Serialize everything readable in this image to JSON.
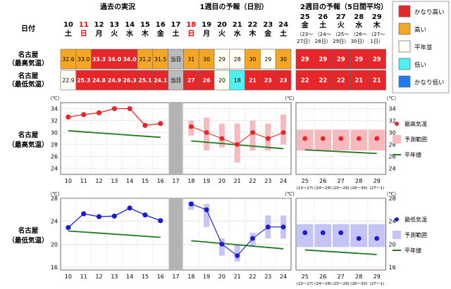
{
  "header": {
    "date_label": "日付",
    "past_label": "過去の実況",
    "week1_label": "1週目の予報（日別）",
    "week2_label": "2週目の予報（5日間平均）",
    "today_label": "当日"
  },
  "days": [
    {
      "d": "10",
      "w": "土",
      "c": "#000000"
    },
    {
      "d": "11",
      "w": "日",
      "c": "#ff0000"
    },
    {
      "d": "12",
      "w": "月",
      "c": "#000000"
    },
    {
      "d": "13",
      "w": "火",
      "c": "#000000"
    },
    {
      "d": "14",
      "w": "水",
      "c": "#000000"
    },
    {
      "d": "15",
      "w": "木",
      "c": "#000000"
    },
    {
      "d": "16",
      "w": "金",
      "c": "#000000"
    },
    {
      "d": "17",
      "w": "土",
      "c": "#000000"
    },
    {
      "d": "18",
      "w": "日",
      "c": "#ff0000"
    },
    {
      "d": "19",
      "w": "月",
      "c": "#000000"
    },
    {
      "d": "20",
      "w": "火",
      "c": "#000000"
    },
    {
      "d": "21",
      "w": "水",
      "c": "#000000"
    },
    {
      "d": "22",
      "w": "木",
      "c": "#000000"
    },
    {
      "d": "23",
      "w": "金",
      "c": "#000000"
    },
    {
      "d": "24",
      "w": "土",
      "c": "#000000"
    }
  ],
  "week2_days": [
    {
      "d": "25",
      "w": "金",
      "r1": "（23〜",
      "r2": "27日）",
      "c": "#000000"
    },
    {
      "d": "26",
      "w": "土",
      "r1": "（24〜",
      "r2": "28日）",
      "c": "#000000"
    },
    {
      "d": "27",
      "w": "火",
      "r1": "（25〜",
      "r2": "29日）",
      "c": "#000000"
    },
    {
      "d": "28",
      "w": "水",
      "r1": "（26〜",
      "r2": "30日）",
      "c": "#000000"
    },
    {
      "d": "29",
      "w": "木",
      "r1": "（27〜",
      "r2": "1日）",
      "c": "#000000"
    }
  ],
  "rows": [
    {
      "label1": "名古屋",
      "label2": "（最高気温）",
      "cells": [
        {
          "v": "32.6",
          "bg": "#f5a623",
          "fg": "#000000"
        },
        {
          "v": "33.0",
          "bg": "#f5a623",
          "fg": "#000000"
        },
        {
          "v": "33.3",
          "bg": "#e8262a",
          "fg": "#ffffff"
        },
        {
          "v": "34.0",
          "bg": "#e8262a",
          "fg": "#ffffff"
        },
        {
          "v": "34.0",
          "bg": "#e8262a",
          "fg": "#ffffff"
        },
        {
          "v": "31.2",
          "bg": "#f5a623",
          "fg": "#000000"
        },
        {
          "v": "31.5",
          "bg": "#f5a623",
          "fg": "#000000"
        },
        {
          "v": "当日",
          "bg": "#bbbbbb",
          "fg": "#000000"
        },
        {
          "v": "31",
          "bg": "#f5a623",
          "fg": "#000000"
        },
        {
          "v": "30",
          "bg": "#f5a623",
          "fg": "#000000"
        },
        {
          "v": "29",
          "bg": "#fffdf2",
          "fg": "#000000"
        },
        {
          "v": "28",
          "bg": "#fffdf2",
          "fg": "#000000"
        },
        {
          "v": "30",
          "bg": "#f5a623",
          "fg": "#000000"
        },
        {
          "v": "29",
          "bg": "#fffdf2",
          "fg": "#000000"
        },
        {
          "v": "30",
          "bg": "#f5a623",
          "fg": "#000000"
        }
      ],
      "w2": [
        "29",
        "29",
        "29",
        "29",
        "29"
      ]
    },
    {
      "label1": "名古屋",
      "label2": "（最低気温）",
      "cells": [
        {
          "v": "22.9",
          "bg": "#fffdf2",
          "fg": "#000000"
        },
        {
          "v": "25.3",
          "bg": "#e8262a",
          "fg": "#ffffff"
        },
        {
          "v": "24.8",
          "bg": "#e8262a",
          "fg": "#ffffff"
        },
        {
          "v": "24.9",
          "bg": "#e8262a",
          "fg": "#ffffff"
        },
        {
          "v": "26.3",
          "bg": "#e8262a",
          "fg": "#ffffff"
        },
        {
          "v": "25.1",
          "bg": "#e8262a",
          "fg": "#ffffff"
        },
        {
          "v": "24.1",
          "bg": "#e8262a",
          "fg": "#ffffff"
        },
        {
          "v": "当日",
          "bg": "#bbbbbb",
          "fg": "#000000"
        },
        {
          "v": "27",
          "bg": "#e8262a",
          "fg": "#ffffff"
        },
        {
          "v": "26",
          "bg": "#e8262a",
          "fg": "#ffffff"
        },
        {
          "v": "20",
          "bg": "#fffdf2",
          "fg": "#000000"
        },
        {
          "v": "18",
          "bg": "#4ff0f0",
          "fg": "#000000"
        },
        {
          "v": "21",
          "bg": "#e8262a",
          "fg": "#ffffff"
        },
        {
          "v": "23",
          "bg": "#e8262a",
          "fg": "#ffffff"
        },
        {
          "v": "23",
          "bg": "#e8262a",
          "fg": "#ffffff"
        }
      ],
      "w2": [
        "22",
        "22",
        "22",
        "21",
        "21"
      ]
    }
  ],
  "legend_top": [
    {
      "label": "かなり高い",
      "color": "#e8262a"
    },
    {
      "label": "高い",
      "color": "#f5a623"
    },
    {
      "label": "平年並",
      "color": "#fffdf2"
    },
    {
      "label": "低い",
      "color": "#4ff0f0"
    },
    {
      "label": "かなり低い",
      "color": "#1e7cf0"
    }
  ],
  "chart_data": [
    {
      "type": "line",
      "title": "名古屋（最高気温）",
      "label1": "名古屋",
      "label2": "（最高気温）",
      "unit": "（℃）",
      "ylim": [
        23,
        35
      ],
      "yticks": [
        24,
        26,
        28,
        30,
        32,
        34
      ],
      "x": [
        "10",
        "11",
        "12",
        "13",
        "14",
        "15",
        "16",
        "17",
        "18",
        "19",
        "20",
        "21",
        "22",
        "23",
        "24"
      ],
      "week2_x": [
        "25",
        "26",
        "27",
        "28",
        "29"
      ],
      "week2_ranges": [
        "(23〜27)",
        "(24〜28)",
        "(25〜29)",
        "(26〜30)",
        "(27〜1)"
      ],
      "observed": [
        32.6,
        33.0,
        33.3,
        34.0,
        34.0,
        31.2,
        31.5
      ],
      "forecast": [
        31,
        30,
        29,
        28,
        30,
        29,
        30
      ],
      "forecast_range": [
        [
          29.5,
          32
        ],
        [
          27,
          32.5
        ],
        [
          27.5,
          31.5
        ],
        [
          25,
          31.5
        ],
        [
          27,
          32
        ],
        [
          27,
          31.5
        ],
        [
          28,
          33
        ]
      ],
      "normal_past": [
        30.3,
        29.2
      ],
      "normal_week1": [
        28.6,
        27.3
      ],
      "week2_values": [
        29,
        29,
        29,
        29,
        29
      ],
      "week2_range": [
        27,
        30.5
      ],
      "week2_normal": [
        27.1,
        26.5
      ],
      "accent": "#e8262a",
      "range_color": "#f6b9bd",
      "legend": [
        {
          "label": "最高気温",
          "kind": "dot"
        },
        {
          "label": "予測範囲",
          "kind": "box"
        },
        {
          "label": "平年値",
          "kind": "line"
        }
      ]
    },
    {
      "type": "line",
      "title": "名古屋（最低気温）",
      "label1": "名古屋",
      "label2": "（最低気温）",
      "unit": "（℃）",
      "ylim": [
        15.5,
        28
      ],
      "yticks": [
        16,
        20,
        24,
        28
      ],
      "x": [
        "10",
        "11",
        "12",
        "13",
        "14",
        "15",
        "16",
        "17",
        "18",
        "19",
        "20",
        "21",
        "22",
        "23",
        "24"
      ],
      "week2_x": [
        "25",
        "26",
        "27",
        "28",
        "29"
      ],
      "week2_ranges": [
        "(23〜27)",
        "(24〜28)",
        "(25〜29)",
        "(26〜30)",
        "(27〜1)"
      ],
      "observed": [
        22.9,
        25.3,
        24.8,
        24.9,
        26.3,
        25.1,
        24.1
      ],
      "forecast": [
        27,
        26,
        20,
        18,
        21,
        23,
        23
      ],
      "forecast_range": [
        [
          26,
          27.5
        ],
        [
          23,
          27
        ],
        [
          18,
          21
        ],
        [
          17,
          20
        ],
        [
          19.5,
          22
        ],
        [
          21,
          25
        ],
        [
          21,
          25
        ]
      ],
      "normal_past": [
        22.3,
        21.2
      ],
      "normal_week1": [
        20.6,
        19.2
      ],
      "week2_values": [
        22,
        22,
        22,
        21,
        21
      ],
      "week2_range": [
        19.5,
        23.5
      ],
      "week2_normal": [
        19.0,
        18.2
      ],
      "accent": "#1a1ad0",
      "range_color": "#c4c4f6",
      "legend": [
        {
          "label": "最低気温",
          "kind": "dot"
        },
        {
          "label": "予測範囲",
          "kind": "box"
        },
        {
          "label": "平年値",
          "kind": "line"
        }
      ]
    }
  ]
}
